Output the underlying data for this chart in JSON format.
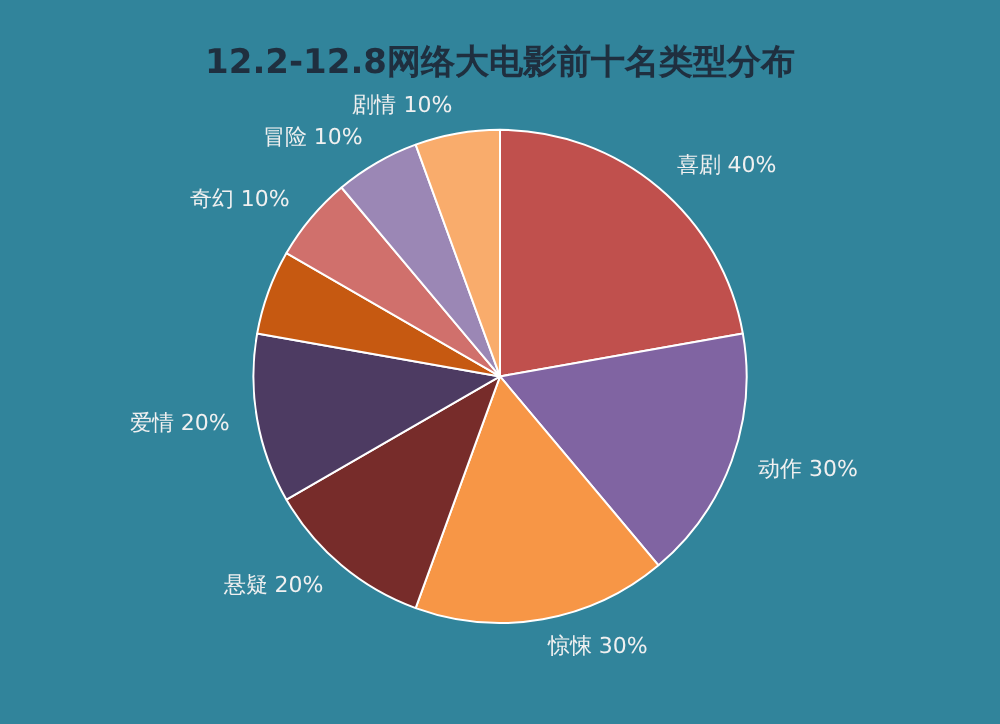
{
  "chart_data": {
    "type": "pie",
    "title": "12.2-12.8网络大电影前十名类型分布",
    "categories": [
      "喜剧",
      "动作",
      "惊悚",
      "悬疑",
      "爱情",
      null,
      "奇幻",
      "冒险",
      "剧情"
    ],
    "values": [
      40,
      30,
      30,
      20,
      20,
      10,
      10,
      10,
      10
    ],
    "value_labels": [
      "40%",
      "30%",
      "30%",
      "20%",
      "20%",
      null,
      "10%",
      "10%",
      "10%"
    ],
    "colors": [
      "#c0504d",
      "#8064a2",
      "#f79646",
      "#772c2a",
      "#4d3b62",
      "#c65911",
      "#d0706c",
      "#9b87b5",
      "#f9ac6c"
    ],
    "legend": false
  }
}
